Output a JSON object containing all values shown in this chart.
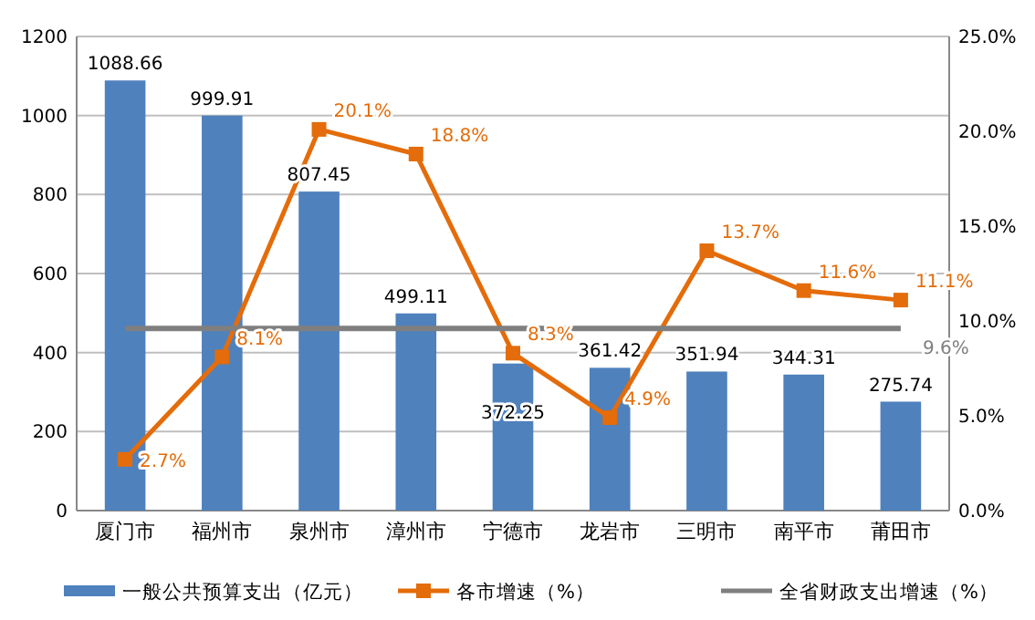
{
  "chart_data": {
    "type": "bar",
    "categories": [
      "厦门市",
      "福州市",
      "泉州市",
      "漳州市",
      "宁德市",
      "龙岩市",
      "三明市",
      "南平市",
      "莆田市"
    ],
    "ylim": [
      0,
      1200
    ],
    "yticks": [
      0,
      200,
      400,
      600,
      800,
      1000,
      1200
    ],
    "y2lim": [
      0,
      25
    ],
    "y2ticks": [
      {
        "value": 0,
        "label": "0.0%"
      },
      {
        "value": 5,
        "label": "5.0%"
      },
      {
        "value": 10,
        "label": "10.0%"
      },
      {
        "value": 15,
        "label": "15.0%"
      },
      {
        "value": 20,
        "label": "20.0%"
      },
      {
        "value": 25,
        "label": "25.0%"
      }
    ],
    "grid": "y",
    "legend": "bottom",
    "series": [
      {
        "name": "一般公共预算支出（亿元）",
        "color": "#4f81bd",
        "values": [
          1088.66,
          999.91,
          807.45,
          499.11,
          372.25,
          361.42,
          351.94,
          344.31,
          275.74
        ],
        "value_labels": [
          "1088.66",
          "999.91",
          "807.45",
          "499.11",
          "372.25",
          "361.42",
          "351.94",
          "344.31",
          "275.74"
        ]
      },
      {
        "name": "各市增速（%）",
        "type": "line",
        "axis": "y2",
        "color": "#e46c0a",
        "marker": "square",
        "values": [
          2.7,
          8.1,
          20.1,
          18.8,
          8.3,
          4.9,
          13.7,
          11.6,
          11.1
        ],
        "value_labels": [
          "2.7%",
          "8.1%",
          "20.1%",
          "18.8%",
          "8.3%",
          "4.9%",
          "13.7%",
          "11.6%",
          "11.1%"
        ]
      },
      {
        "name": "全省财政支出增速（%）",
        "type": "line",
        "axis": "y2",
        "color": "#7f7f7f",
        "marker": "none",
        "values": [
          9.6,
          9.6,
          9.6,
          9.6,
          9.6,
          9.6,
          9.6,
          9.6,
          9.6
        ],
        "value_labels": [
          null,
          null,
          null,
          null,
          null,
          null,
          null,
          null,
          "9.6%"
        ]
      }
    ]
  }
}
